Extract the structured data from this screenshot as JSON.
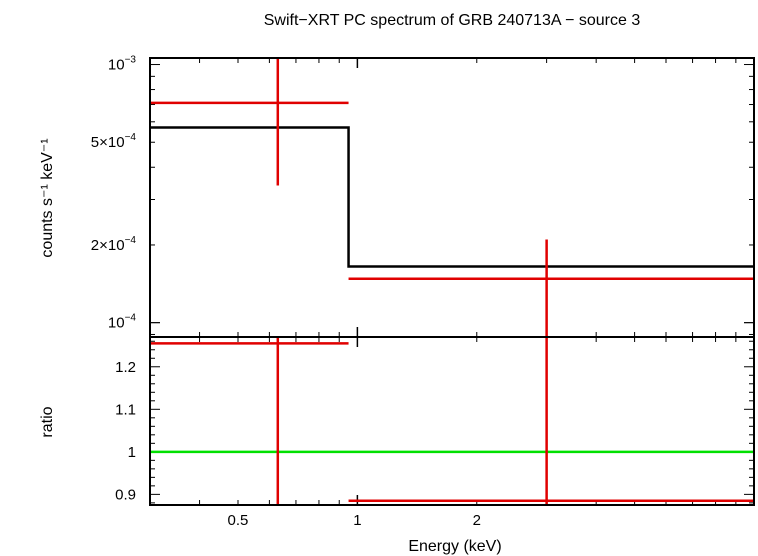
{
  "chart_data": {
    "type": "spectrum",
    "title": "Swift−XRT PC spectrum of GRB 240713A − source 3",
    "x_axis": {
      "label": "Energy (keV)",
      "scale": "log",
      "range_keV": [
        0.3,
        10.0
      ],
      "ticks": [
        {
          "value": 0.5,
          "label": "0.5"
        },
        {
          "value": 1,
          "label": "1"
        },
        {
          "value": 2,
          "label": "2"
        }
      ]
    },
    "top_panel": {
      "ylabel": "counts s⁻¹ keV⁻¹",
      "yscale": "log",
      "ylim": [
        8.8e-05,
        0.00106
      ],
      "y_ticks": [
        {
          "value": 0.001,
          "mantissa": "10",
          "exponent": "−3"
        },
        {
          "value": 0.0005,
          "mantissa": "5×10",
          "exponent": "−4"
        },
        {
          "value": 0.0002,
          "mantissa": "2×10",
          "exponent": "−4"
        },
        {
          "value": 0.0001,
          "mantissa": "10",
          "exponent": "−4"
        }
      ],
      "series": [
        {
          "kind": "model",
          "color": "#000000",
          "steps": [
            {
              "x0": 0.3,
              "x1": 0.95,
              "y": 0.00057
            },
            {
              "x0": 0.95,
              "x1": 10.0,
              "y": 0.000165
            }
          ]
        },
        {
          "kind": "data",
          "color": "#e00000",
          "points": [
            {
              "x": 0.63,
              "xlo": 0.3,
              "xhi": 0.95,
              "y": 0.00071,
              "ylo": 0.00034,
              "yhi": 0.00106
            },
            {
              "x": 3.0,
              "xlo": 0.95,
              "xhi": 10.0,
              "y": 0.000148,
              "ylo": 8.8e-05,
              "yhi": 0.00021
            }
          ]
        }
      ]
    },
    "bottom_panel": {
      "ylabel": "ratio",
      "yscale": "linear",
      "ylim": [
        0.875,
        1.27
      ],
      "y_ticks": [
        {
          "value": 1.2,
          "label": "1.2"
        },
        {
          "value": 1.1,
          "label": "1.1"
        },
        {
          "value": 1.0,
          "label": "1"
        },
        {
          "value": 0.9,
          "label": "0.9"
        }
      ],
      "reference_line": {
        "y": 1.0,
        "color": "#00e000"
      },
      "series": [
        {
          "kind": "data",
          "color": "#e00000",
          "points": [
            {
              "x": 0.63,
              "xlo": 0.3,
              "xhi": 0.95,
              "y": 1.255,
              "ylo": 0.875,
              "yhi": 1.27
            },
            {
              "x": 3.0,
              "xlo": 0.95,
              "xhi": 10.0,
              "y": 0.885,
              "ylo": 0.875,
              "yhi": 1.27
            }
          ]
        }
      ]
    }
  }
}
